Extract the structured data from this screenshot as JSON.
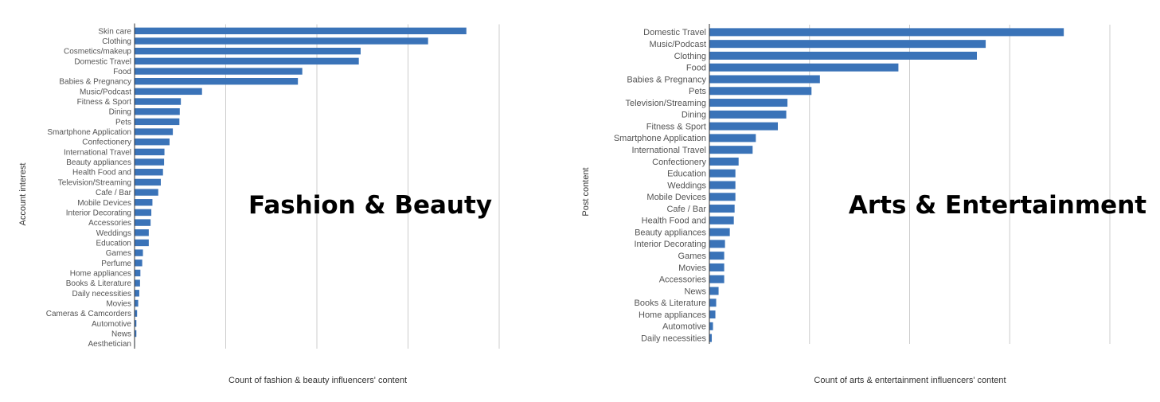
{
  "chart_data": [
    {
      "type": "bar",
      "orientation": "horizontal",
      "overlay_title": "Fashion & Beauty",
      "xlabel": "Count of fashion & beauty influencers' content",
      "ylabel": "Account interest",
      "xlim": [
        0,
        100
      ],
      "grid": true,
      "categories": [
        "Skin care",
        "Clothing",
        "Cosmetics/makeup",
        "Domestic Travel",
        "Food",
        "Babies & Pregnancy",
        "Music/Podcast",
        "Fitness & Sport",
        "Dining",
        "Pets",
        "Smartphone Application",
        "Confectionery",
        "International Travel",
        "Beauty appliances",
        "Health Food and",
        "Television/Streaming",
        "Cafe / Bar",
        "Mobile Devices",
        "Interior Decorating",
        "Accessories",
        "Weddings",
        "Education",
        "Games",
        "Perfume",
        "Home appliances",
        "Books & Literature",
        "Daily necessities",
        "Movies",
        "Cameras & Camcorders",
        "Automotive",
        "News",
        "Aesthetician"
      ],
      "values": [
        91,
        80.5,
        62,
        61.5,
        46,
        44.8,
        18.5,
        12.7,
        12.4,
        12.3,
        10.5,
        9.6,
        8.2,
        8.1,
        7.8,
        7.2,
        6.5,
        4.9,
        4.6,
        4.4,
        3.9,
        3.9,
        2.3,
        2.1,
        1.6,
        1.5,
        1.3,
        1.0,
        0.7,
        0.5,
        0.5,
        0.1
      ]
    },
    {
      "type": "bar",
      "orientation": "horizontal",
      "overlay_title": "Arts & Entertainment",
      "xlabel": "Count of arts & entertainment influencers' content",
      "ylabel": "Post content",
      "xlim": [
        0,
        100
      ],
      "grid": true,
      "categories": [
        "Domestic Travel",
        "Music/Podcast",
        "Clothing",
        "Food",
        "Babies & Pregnancy",
        "Pets",
        "Television/Streaming",
        "Dining",
        "Fitness & Sport",
        "Smartphone Application",
        "International Travel",
        "Confectionery",
        "Education",
        "Weddings",
        "Mobile Devices",
        "Cafe / Bar",
        "Health Food and",
        "Beauty appliances",
        "Interior Decorating",
        "Games",
        "Movies",
        "Accessories",
        "News",
        "Books & Literature",
        "Home appliances",
        "Automotive",
        "Daily necessities"
      ],
      "values": [
        88.5,
        69,
        66.8,
        47.2,
        27.6,
        25.5,
        19.5,
        19.2,
        17.1,
        11.6,
        10.8,
        7.3,
        6.5,
        6.5,
        6.5,
        6.3,
        6.1,
        5.1,
        3.9,
        3.7,
        3.7,
        3.7,
        2.3,
        1.7,
        1.5,
        0.9,
        0.6
      ]
    }
  ]
}
